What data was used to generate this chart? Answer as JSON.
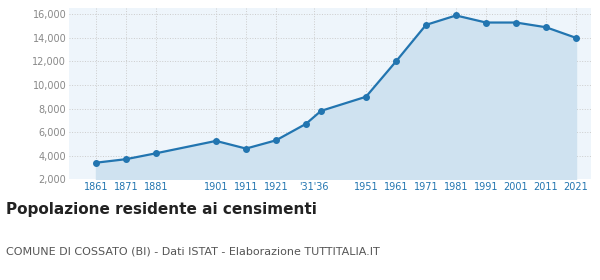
{
  "years": [
    1861,
    1871,
    1881,
    1901,
    1911,
    1921,
    1931,
    1936,
    1951,
    1961,
    1971,
    1981,
    1991,
    2001,
    2011,
    2021
  ],
  "population": [
    3400,
    3700,
    4200,
    5250,
    4600,
    5300,
    6700,
    7800,
    9000,
    12000,
    15100,
    15900,
    15300,
    15300,
    14900,
    14000
  ],
  "x_tick_positions": [
    1861,
    1871,
    1881,
    1901,
    1911,
    1921,
    1933.5,
    1951,
    1961,
    1971,
    1981,
    1991,
    2001,
    2011,
    2021
  ],
  "x_tick_labels": [
    "1861",
    "1871",
    "1881",
    "1901",
    "1911",
    "1921",
    "'31'36",
    "1951",
    "1961",
    "1971",
    "1981",
    "1991",
    "2001",
    "2011",
    "2021"
  ],
  "ylim": [
    2000,
    16500
  ],
  "yticks": [
    2000,
    4000,
    6000,
    8000,
    10000,
    12000,
    14000,
    16000
  ],
  "ytick_labels": [
    "2,000",
    "4,000",
    "6,000",
    "8,000",
    "10,000",
    "12,000",
    "14,000",
    "16,000"
  ],
  "xlim_left": 1852,
  "xlim_right": 2026,
  "line_color": "#2275b0",
  "fill_color": "#cfe2f0",
  "grid_color": "#cccccc",
  "bg_color": "#eef5fb",
  "title": "Popolazione residente ai censimenti",
  "subtitle": "COMUNE DI COSSATO (BI) - Dati ISTAT - Elaborazione TUTTITALIA.IT",
  "title_fontsize": 11,
  "subtitle_fontsize": 8,
  "marker_size": 4,
  "line_width": 1.6
}
